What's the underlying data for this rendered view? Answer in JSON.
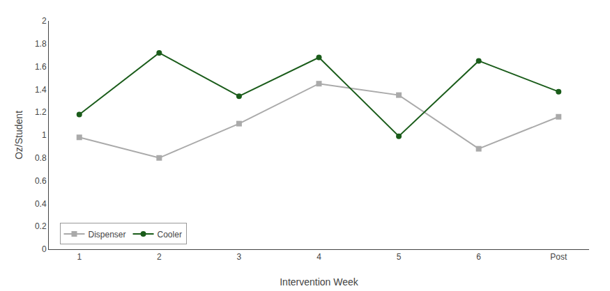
{
  "chart_data": {
    "type": "line",
    "categories": [
      "1",
      "2",
      "3",
      "4",
      "5",
      "6",
      "Post"
    ],
    "series": [
      {
        "name": "Dispenser",
        "color": "#aaaaaa",
        "marker": "square",
        "values": [
          0.98,
          0.8,
          1.1,
          1.45,
          1.35,
          0.88,
          1.16
        ]
      },
      {
        "name": "Cooler",
        "color": "#1a5c1a",
        "marker": "circle",
        "values": [
          1.18,
          1.72,
          1.34,
          1.68,
          0.99,
          1.65,
          1.38
        ]
      }
    ],
    "xlabel": "Intervention Week",
    "ylabel": "Oz/Student",
    "ylim": [
      0,
      2
    ],
    "yticks": [
      0,
      0.2,
      0.4,
      0.6,
      0.8,
      1,
      1.2,
      1.4,
      1.6,
      1.8,
      2
    ],
    "grid": false,
    "legend": "lower left"
  }
}
